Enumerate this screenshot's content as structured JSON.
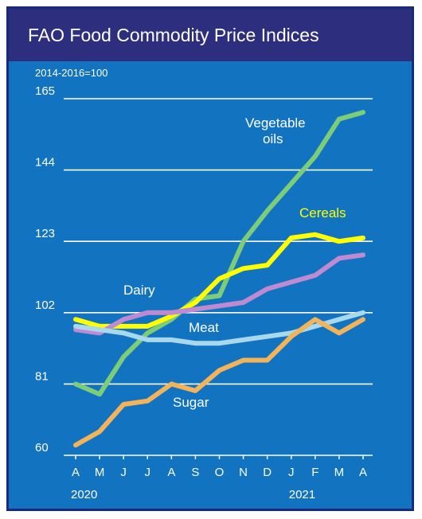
{
  "chart_data": {
    "type": "line",
    "title": "FAO Food Commodity Price Indices",
    "subtitle": "2014-2016=100",
    "categories": [
      "A",
      "M",
      "J",
      "J",
      "A",
      "S",
      "O",
      "N",
      "D",
      "J",
      "F",
      "M",
      "A"
    ],
    "years": [
      "2020",
      "2021"
    ],
    "yticks": [
      60,
      81,
      102,
      123,
      144,
      165
    ],
    "ylim": [
      60,
      165
    ],
    "grid": true,
    "series": [
      {
        "name": "Vegetable oils",
        "label": [
          "Vegetable",
          "oils"
        ],
        "color": "#7dcc78",
        "values": [
          81,
          78,
          89,
          96,
          100,
          106,
          107,
          123,
          132,
          140,
          148,
          159,
          161
        ]
      },
      {
        "name": "Cereals",
        "label": [
          "Cereals"
        ],
        "color": "#ffff00",
        "values": [
          100,
          98,
          98,
          98,
          101,
          105,
          112,
          115,
          116,
          124,
          125,
          123,
          124
        ]
      },
      {
        "name": "Dairy",
        "label": [
          "Dairy"
        ],
        "color": "#c08ad0",
        "values": [
          97,
          96,
          100,
          102,
          102,
          103,
          104,
          105,
          109,
          111,
          113,
          118,
          119
        ]
      },
      {
        "name": "Meat",
        "label": [
          "Meat"
        ],
        "color": "#a8d8ec",
        "values": [
          98,
          97,
          96,
          94,
          94,
          93,
          93,
          94,
          95,
          96,
          98,
          100,
          102
        ]
      },
      {
        "name": "Sugar",
        "label": [
          "Sugar"
        ],
        "color": "#f2b35a",
        "values": [
          63,
          67,
          75,
          76,
          81,
          79,
          85,
          88,
          88,
          95,
          100,
          96,
          100
        ]
      }
    ]
  }
}
